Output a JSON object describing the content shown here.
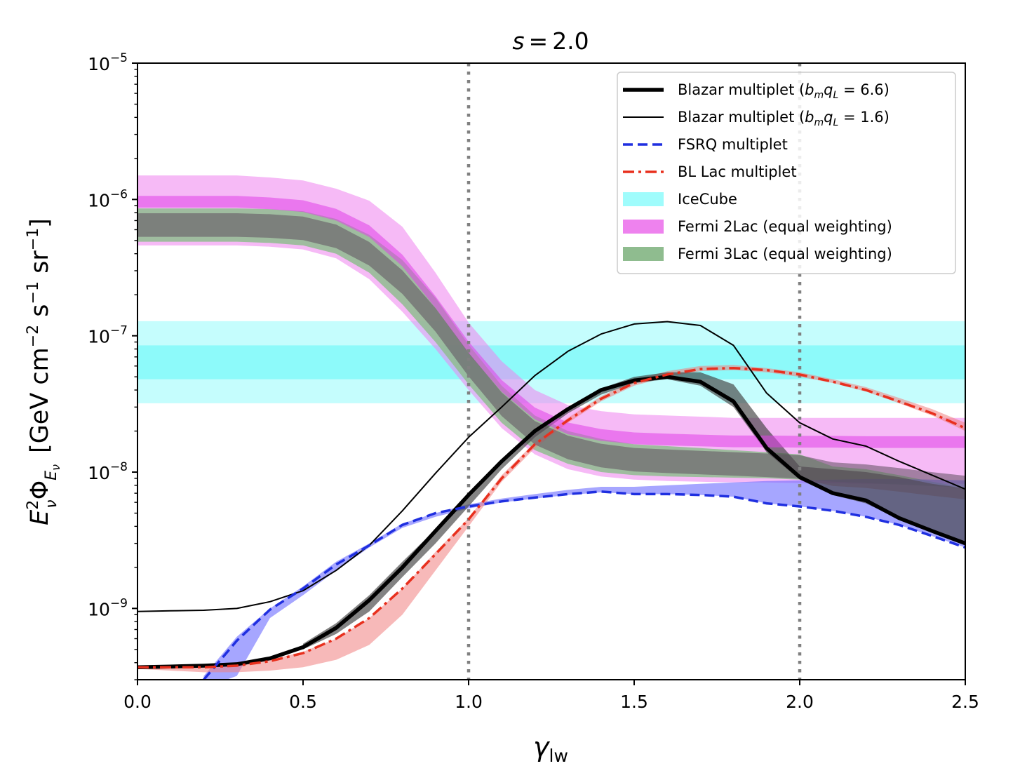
{
  "chart_data": {
    "type": "line",
    "title_var": "s",
    "title_value": "2.0",
    "xlabel_main": "γ",
    "xlabel_sub": "lw",
    "ylabel_prefix": "E",
    "ylabel_sub_nu": "ν",
    "ylabel_sup_2": "2",
    "ylabel_phi": "Φ",
    "ylabel_sub_E": "E",
    "ylabel_units": "[GeV cm",
    "ylabel_units_sup1": "−2",
    "ylabel_units_mid": " s",
    "ylabel_units_sup2": "−1",
    "ylabel_units_end": " sr",
    "ylabel_units_sup3": "−1",
    "ylabel_units_close": "]",
    "xlim": [
      0,
      2.5
    ],
    "ylim": [
      3e-10,
      1e-05
    ],
    "yscale": "log",
    "xticks": [
      0.0,
      0.5,
      1.0,
      1.5,
      2.0,
      2.5
    ],
    "xtick_labels": [
      "0.0",
      "0.5",
      "1.0",
      "1.5",
      "2.0",
      "2.5"
    ],
    "yticks_exp": [
      -5,
      -6,
      -7,
      -8,
      -9
    ],
    "vlines": [
      1.0,
      2.0
    ],
    "legend_position": "upper-right",
    "icecube_band_outer": [
      3.2e-08,
      1.28e-07
    ],
    "icecube_band_inner": [
      4.8e-08,
      8.5e-08
    ],
    "bands": [
      {
        "name": "Fermi 2Lac (equal weighting)",
        "color": "#ee82ee",
        "x": [
          0.0,
          0.1,
          0.2,
          0.3,
          0.4,
          0.5,
          0.6,
          0.7,
          0.8,
          0.9,
          1.0,
          1.1,
          1.2,
          1.3,
          1.4,
          1.5,
          1.6,
          1.7,
          1.8,
          1.9,
          2.0,
          2.1,
          2.2,
          2.3,
          2.4,
          2.5
        ],
        "lower": [
          4.6e-07,
          4.6e-07,
          4.6e-07,
          4.6e-07,
          4.5e-07,
          4.3e-07,
          3.7e-07,
          2.6e-07,
          1.5e-07,
          8e-08,
          4e-08,
          2.1e-08,
          1.35e-08,
          1.05e-08,
          9.3e-09,
          8.8e-09,
          8.6e-09,
          8.5e-09,
          8.4e-09,
          8.4e-09,
          8.3e-09,
          8.3e-09,
          8.2e-09,
          8.2e-09,
          8.2e-09,
          8.2e-09
        ],
        "upper": [
          1.5e-06,
          1.5e-06,
          1.5e-06,
          1.5e-06,
          1.45e-06,
          1.38e-06,
          1.2e-06,
          9.8e-07,
          6.3e-07,
          2.9e-07,
          1.25e-07,
          6.5e-08,
          4e-08,
          3.1e-08,
          2.8e-08,
          2.65e-08,
          2.6e-08,
          2.55e-08,
          2.5e-08,
          2.5e-08,
          2.5e-08,
          2.5e-08,
          2.5e-08,
          2.5e-08,
          2.5e-08,
          2.5e-08
        ]
      },
      {
        "name": "Fermi 3Lac (equal weighting)",
        "color": "#8fbc8f",
        "x": [
          0.0,
          0.1,
          0.2,
          0.3,
          0.4,
          0.5,
          0.6,
          0.7,
          0.8,
          0.9,
          1.0,
          1.1,
          1.2,
          1.3,
          1.4,
          1.5,
          1.6,
          1.7,
          1.8,
          1.9,
          2.0,
          2.1,
          2.2,
          2.3,
          2.4,
          2.5
        ],
        "lower": [
          4.9e-07,
          4.9e-07,
          4.9e-07,
          4.9e-07,
          4.8e-07,
          4.6e-07,
          4e-07,
          2.9e-07,
          1.7e-07,
          9e-08,
          4.4e-08,
          2.3e-08,
          1.45e-08,
          1.15e-08,
          1e-08,
          9.5e-09,
          9.3e-09,
          9.2e-09,
          9.1e-09,
          9e-09,
          8.8e-09,
          8.5e-09,
          8.3e-09,
          8.1e-09,
          7.9e-09,
          7.7e-09
        ],
        "upper": [
          8.6e-07,
          8.6e-07,
          8.6e-07,
          8.6e-07,
          8.5e-07,
          8.2e-07,
          7.2e-07,
          5.5e-07,
          3.6e-07,
          1.9e-07,
          8.6e-08,
          4.3e-08,
          2.6e-08,
          2e-08,
          1.75e-08,
          1.6e-08,
          1.55e-08,
          1.5e-08,
          1.45e-08,
          1.4e-08,
          1.35e-08,
          1.1e-08,
          1.05e-08,
          9.5e-09,
          8.5e-09,
          7.7e-09
        ]
      },
      {
        "name": "FSRQ band",
        "color": "#6b6bff",
        "x": [
          0.2,
          0.3,
          0.4,
          0.5,
          0.6,
          0.7,
          0.8,
          0.9,
          1.0,
          1.1,
          1.2,
          1.3,
          1.4,
          1.5,
          1.6,
          1.7,
          1.8,
          1.9,
          2.0,
          2.1,
          2.2,
          2.3,
          2.4,
          2.5
        ],
        "lower": [
          2.6e-10,
          3.2e-10,
          8.5e-10,
          1.25e-09,
          1.9e-09,
          2.8e-09,
          3.9e-09,
          4.7e-09,
          5.4e-09,
          6e-09,
          6.4e-09,
          6.8e-09,
          7.1e-09,
          6.9e-09,
          6.9e-09,
          6.8e-09,
          6.6e-09,
          5.9e-09,
          5.6e-09,
          5.2e-09,
          4.7e-09,
          4.1e-09,
          3.4e-09,
          2.8e-09
        ],
        "upper": [
          3.2e-10,
          6.2e-10,
          1e-09,
          1.45e-09,
          2.2e-09,
          3e-09,
          4.2e-09,
          5e-09,
          5.8e-09,
          6.4e-09,
          6.9e-09,
          7.4e-09,
          7.8e-09,
          7.8e-09,
          8e-09,
          8.2e-09,
          8.4e-09,
          8.6e-09,
          8.7e-09,
          8.8e-09,
          8.9e-09,
          8.9e-09,
          8.8e-09,
          8.7e-09
        ]
      },
      {
        "name": "BL Lac band",
        "color": "#f08080",
        "x": [
          0.0,
          0.1,
          0.2,
          0.3,
          0.4,
          0.5,
          0.6,
          0.7,
          0.8,
          0.9,
          1.0,
          1.1,
          1.2,
          1.3,
          1.4,
          1.5,
          1.6,
          1.7,
          1.8,
          1.9,
          2.0,
          2.1,
          2.2,
          2.3,
          2.4,
          2.5
        ],
        "lower": [
          3.6e-10,
          3.5e-10,
          3.4e-10,
          3.4e-10,
          3.5e-10,
          3.7e-10,
          4.2e-10,
          5.4e-10,
          9e-10,
          1.9e-09,
          4e-09,
          8.5e-09,
          1.5e-08,
          2.3e-08,
          3.3e-08,
          4.3e-08,
          5e-08,
          5.5e-08,
          5.6e-08,
          5.4e-08,
          5e-08,
          4.5e-08,
          3.9e-08,
          3.2e-08,
          2.6e-08,
          2e-08
        ],
        "upper": [
          3.8e-10,
          3.8e-10,
          3.8e-10,
          3.9e-10,
          4.2e-10,
          4.8e-10,
          6e-10,
          8.5e-10,
          1.4e-09,
          2.6e-09,
          4.6e-09,
          9.5e-09,
          1.65e-08,
          2.5e-08,
          3.6e-08,
          4.7e-08,
          5.5e-08,
          6e-08,
          6.1e-08,
          5.8e-08,
          5.4e-08,
          4.8e-08,
          4.2e-08,
          3.5e-08,
          2.9e-08,
          2.3e-08
        ]
      },
      {
        "name": "Blazar band",
        "color": "#404040",
        "x": [
          0.5,
          0.6,
          0.7,
          0.8,
          0.9,
          1.0,
          1.1,
          1.2,
          1.3,
          1.4,
          1.5,
          1.6,
          1.7,
          1.8,
          1.9,
          2.0,
          2.1,
          2.2,
          2.3,
          2.4,
          2.5
        ],
        "lower": [
          5e-10,
          6.5e-10,
          9.5e-10,
          1.7e-09,
          3e-09,
          5.6e-09,
          1.05e-08,
          1.8e-08,
          2.7e-08,
          3.7e-08,
          4.5e-08,
          4.8e-08,
          4.3e-08,
          3e-08,
          1.4e-08,
          8.8e-09,
          6.8e-09,
          5.9e-09,
          4.5e-09,
          3.7e-09,
          3e-09
        ],
        "upper": [
          5.5e-10,
          7.8e-10,
          1.25e-09,
          2.2e-09,
          3.8e-09,
          6.8e-09,
          1.2e-08,
          2.05e-08,
          3e-08,
          4.1e-08,
          5e-08,
          5.4e-08,
          5.4e-08,
          4.4e-08,
          2.1e-08,
          1.1e-08,
          1.05e-08,
          1e-08,
          9.2e-09,
          8.2e-09,
          7.6e-09
        ]
      }
    ],
    "series": [
      {
        "name": "Blazar multiplet (b_mq_L = 6.6)",
        "color": "#000000",
        "style": "solid-thick",
        "x": [
          0.0,
          0.1,
          0.2,
          0.3,
          0.4,
          0.5,
          0.6,
          0.7,
          0.8,
          0.9,
          1.0,
          1.1,
          1.2,
          1.3,
          1.4,
          1.5,
          1.6,
          1.7,
          1.8,
          1.9,
          2.0,
          2.1,
          2.2,
          2.3,
          2.4,
          2.5
        ],
        "values": [
          3.7e-10,
          3.75e-10,
          3.8e-10,
          3.9e-10,
          4.3e-10,
          5.2e-10,
          7.2e-10,
          1.15e-09,
          2e-09,
          3.7e-09,
          6.8e-09,
          1.2e-08,
          2e-08,
          2.9e-08,
          4e-08,
          4.7e-08,
          5e-08,
          4.6e-08,
          3.3e-08,
          1.5e-08,
          9.2e-09,
          7e-09,
          6.2e-09,
          4.6e-09,
          3.7e-09,
          3e-09
        ]
      },
      {
        "name": "Blazar multiplet (b_mq_L = 1.6)",
        "color": "#000000",
        "style": "solid-thin",
        "x": [
          0.0,
          0.1,
          0.2,
          0.3,
          0.4,
          0.5,
          0.6,
          0.7,
          0.8,
          0.9,
          1.0,
          1.1,
          1.2,
          1.3,
          1.4,
          1.5,
          1.6,
          1.7,
          1.8,
          1.9,
          2.0,
          2.1,
          2.2,
          2.3,
          2.4,
          2.5
        ],
        "values": [
          9.5e-10,
          9.6e-10,
          9.7e-10,
          1e-09,
          1.12e-09,
          1.35e-09,
          1.9e-09,
          2.9e-09,
          5.2e-09,
          9.8e-09,
          1.8e-08,
          3e-08,
          5.1e-08,
          7.7e-08,
          1.03e-07,
          1.22e-07,
          1.27e-07,
          1.19e-07,
          8.5e-08,
          3.8e-08,
          2.3e-08,
          1.75e-08,
          1.55e-08,
          1.2e-08,
          9.5e-09,
          7.5e-09
        ]
      },
      {
        "name": "FSRQ multiplet",
        "color": "#1f2fe0",
        "style": "dashed",
        "x": [
          0.2,
          0.3,
          0.4,
          0.5,
          0.6,
          0.7,
          0.8,
          0.9,
          1.0,
          1.1,
          1.2,
          1.3,
          1.4,
          1.5,
          1.6,
          1.7,
          1.8,
          1.9,
          2.0,
          2.1,
          2.2,
          2.3,
          2.4,
          2.5
        ],
        "values": [
          3e-10,
          5.8e-10,
          9.8e-10,
          1.4e-09,
          2.1e-09,
          2.9e-09,
          4.1e-09,
          5e-09,
          5.6e-09,
          6.1e-09,
          6.5e-09,
          6.9e-09,
          7.2e-09,
          6.9e-09,
          6.9e-09,
          6.8e-09,
          6.6e-09,
          5.9e-09,
          5.6e-09,
          5.2e-09,
          4.7e-09,
          4.1e-09,
          3.4e-09,
          2.8e-09
        ]
      },
      {
        "name": "BL Lac multiplet",
        "color": "#e8301e",
        "style": "dashdot",
        "x": [
          0.0,
          0.1,
          0.2,
          0.3,
          0.4,
          0.5,
          0.6,
          0.7,
          0.8,
          0.9,
          1.0,
          1.1,
          1.2,
          1.3,
          1.4,
          1.5,
          1.6,
          1.7,
          1.8,
          1.9,
          2.0,
          2.1,
          2.2,
          2.3,
          2.4,
          2.5
        ],
        "values": [
          3.7e-10,
          3.7e-10,
          3.7e-10,
          3.8e-10,
          4.1e-10,
          4.7e-10,
          6e-10,
          8.5e-10,
          1.4e-09,
          2.5e-09,
          4.5e-09,
          9e-09,
          1.6e-08,
          2.4e-08,
          3.45e-08,
          4.5e-08,
          5.2e-08,
          5.7e-08,
          5.8e-08,
          5.6e-08,
          5.2e-08,
          4.6e-08,
          4e-08,
          3.3e-08,
          2.7e-08,
          2.1e-08
        ]
      }
    ],
    "legend": [
      {
        "label_pre": "Blazar multiplet (",
        "label_math": "b",
        "label_math_sub": "m",
        "label_math2": "q",
        "label_math_sub2": "L",
        "label_post": " = 6.6)",
        "kind": "line",
        "color": "#000000",
        "style": "solid-thick"
      },
      {
        "label_pre": "Blazar multiplet (",
        "label_math": "b",
        "label_math_sub": "m",
        "label_math2": "q",
        "label_math_sub2": "L",
        "label_post": " = 1.6)",
        "kind": "line",
        "color": "#000000",
        "style": "solid-thin"
      },
      {
        "label": "FSRQ multiplet",
        "kind": "line",
        "color": "#1f2fe0",
        "style": "dashed"
      },
      {
        "label": "BL Lac multiplet",
        "kind": "line",
        "color": "#e8301e",
        "style": "dashdot"
      },
      {
        "label": "IceCube",
        "kind": "patch",
        "color": "#9ffcfc"
      },
      {
        "label": "Fermi 2Lac (equal weighting)",
        "kind": "patch",
        "color": "#ee82ee"
      },
      {
        "label": "Fermi 3Lac (equal weighting)",
        "kind": "patch",
        "color": "#8fbc8f"
      }
    ]
  }
}
